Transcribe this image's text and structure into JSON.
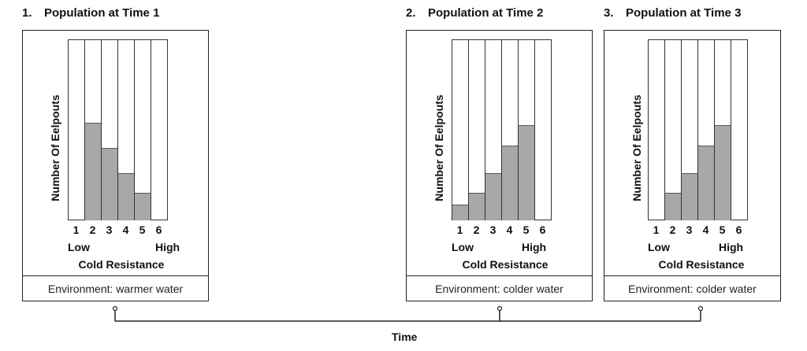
{
  "chart_data": [
    {
      "type": "bar",
      "number": "1.",
      "title": "Population at Time 1",
      "categories": [
        "1",
        "2",
        "3",
        "4",
        "5",
        "6"
      ],
      "values": [
        0,
        4.3,
        3.2,
        2.1,
        1.2,
        0
      ],
      "ylim": [
        0,
        8
      ],
      "ylabel": "Number Of Eelpouts",
      "low_label": "Low",
      "high_label": "High",
      "xlabel": "Cold Resistance",
      "environment": "Environment: warmer water"
    },
    {
      "type": "bar",
      "number": "2.",
      "title": "Population at Time 2",
      "categories": [
        "1",
        "2",
        "3",
        "4",
        "5",
        "6"
      ],
      "values": [
        0.7,
        1.2,
        2.1,
        3.3,
        4.2,
        0
      ],
      "ylim": [
        0,
        8
      ],
      "ylabel": "Number Of Eelpouts",
      "low_label": "Low",
      "high_label": "High",
      "xlabel": "Cold Resistance",
      "environment": "Environment: colder water"
    },
    {
      "type": "bar",
      "number": "3.",
      "title": "Population at Time 3",
      "categories": [
        "1",
        "2",
        "3",
        "4",
        "5",
        "6"
      ],
      "values": [
        0,
        1.2,
        2.1,
        3.3,
        4.2,
        0
      ],
      "ylim": [
        0,
        8
      ],
      "ylabel": "Number Of Eelpouts",
      "low_label": "Low",
      "high_label": "High",
      "xlabel": "Cold Resistance",
      "environment": "Environment: colder water"
    }
  ],
  "time_label": "Time",
  "colors": {
    "bar_fill": "#a8a8a8",
    "border": "#222222"
  }
}
